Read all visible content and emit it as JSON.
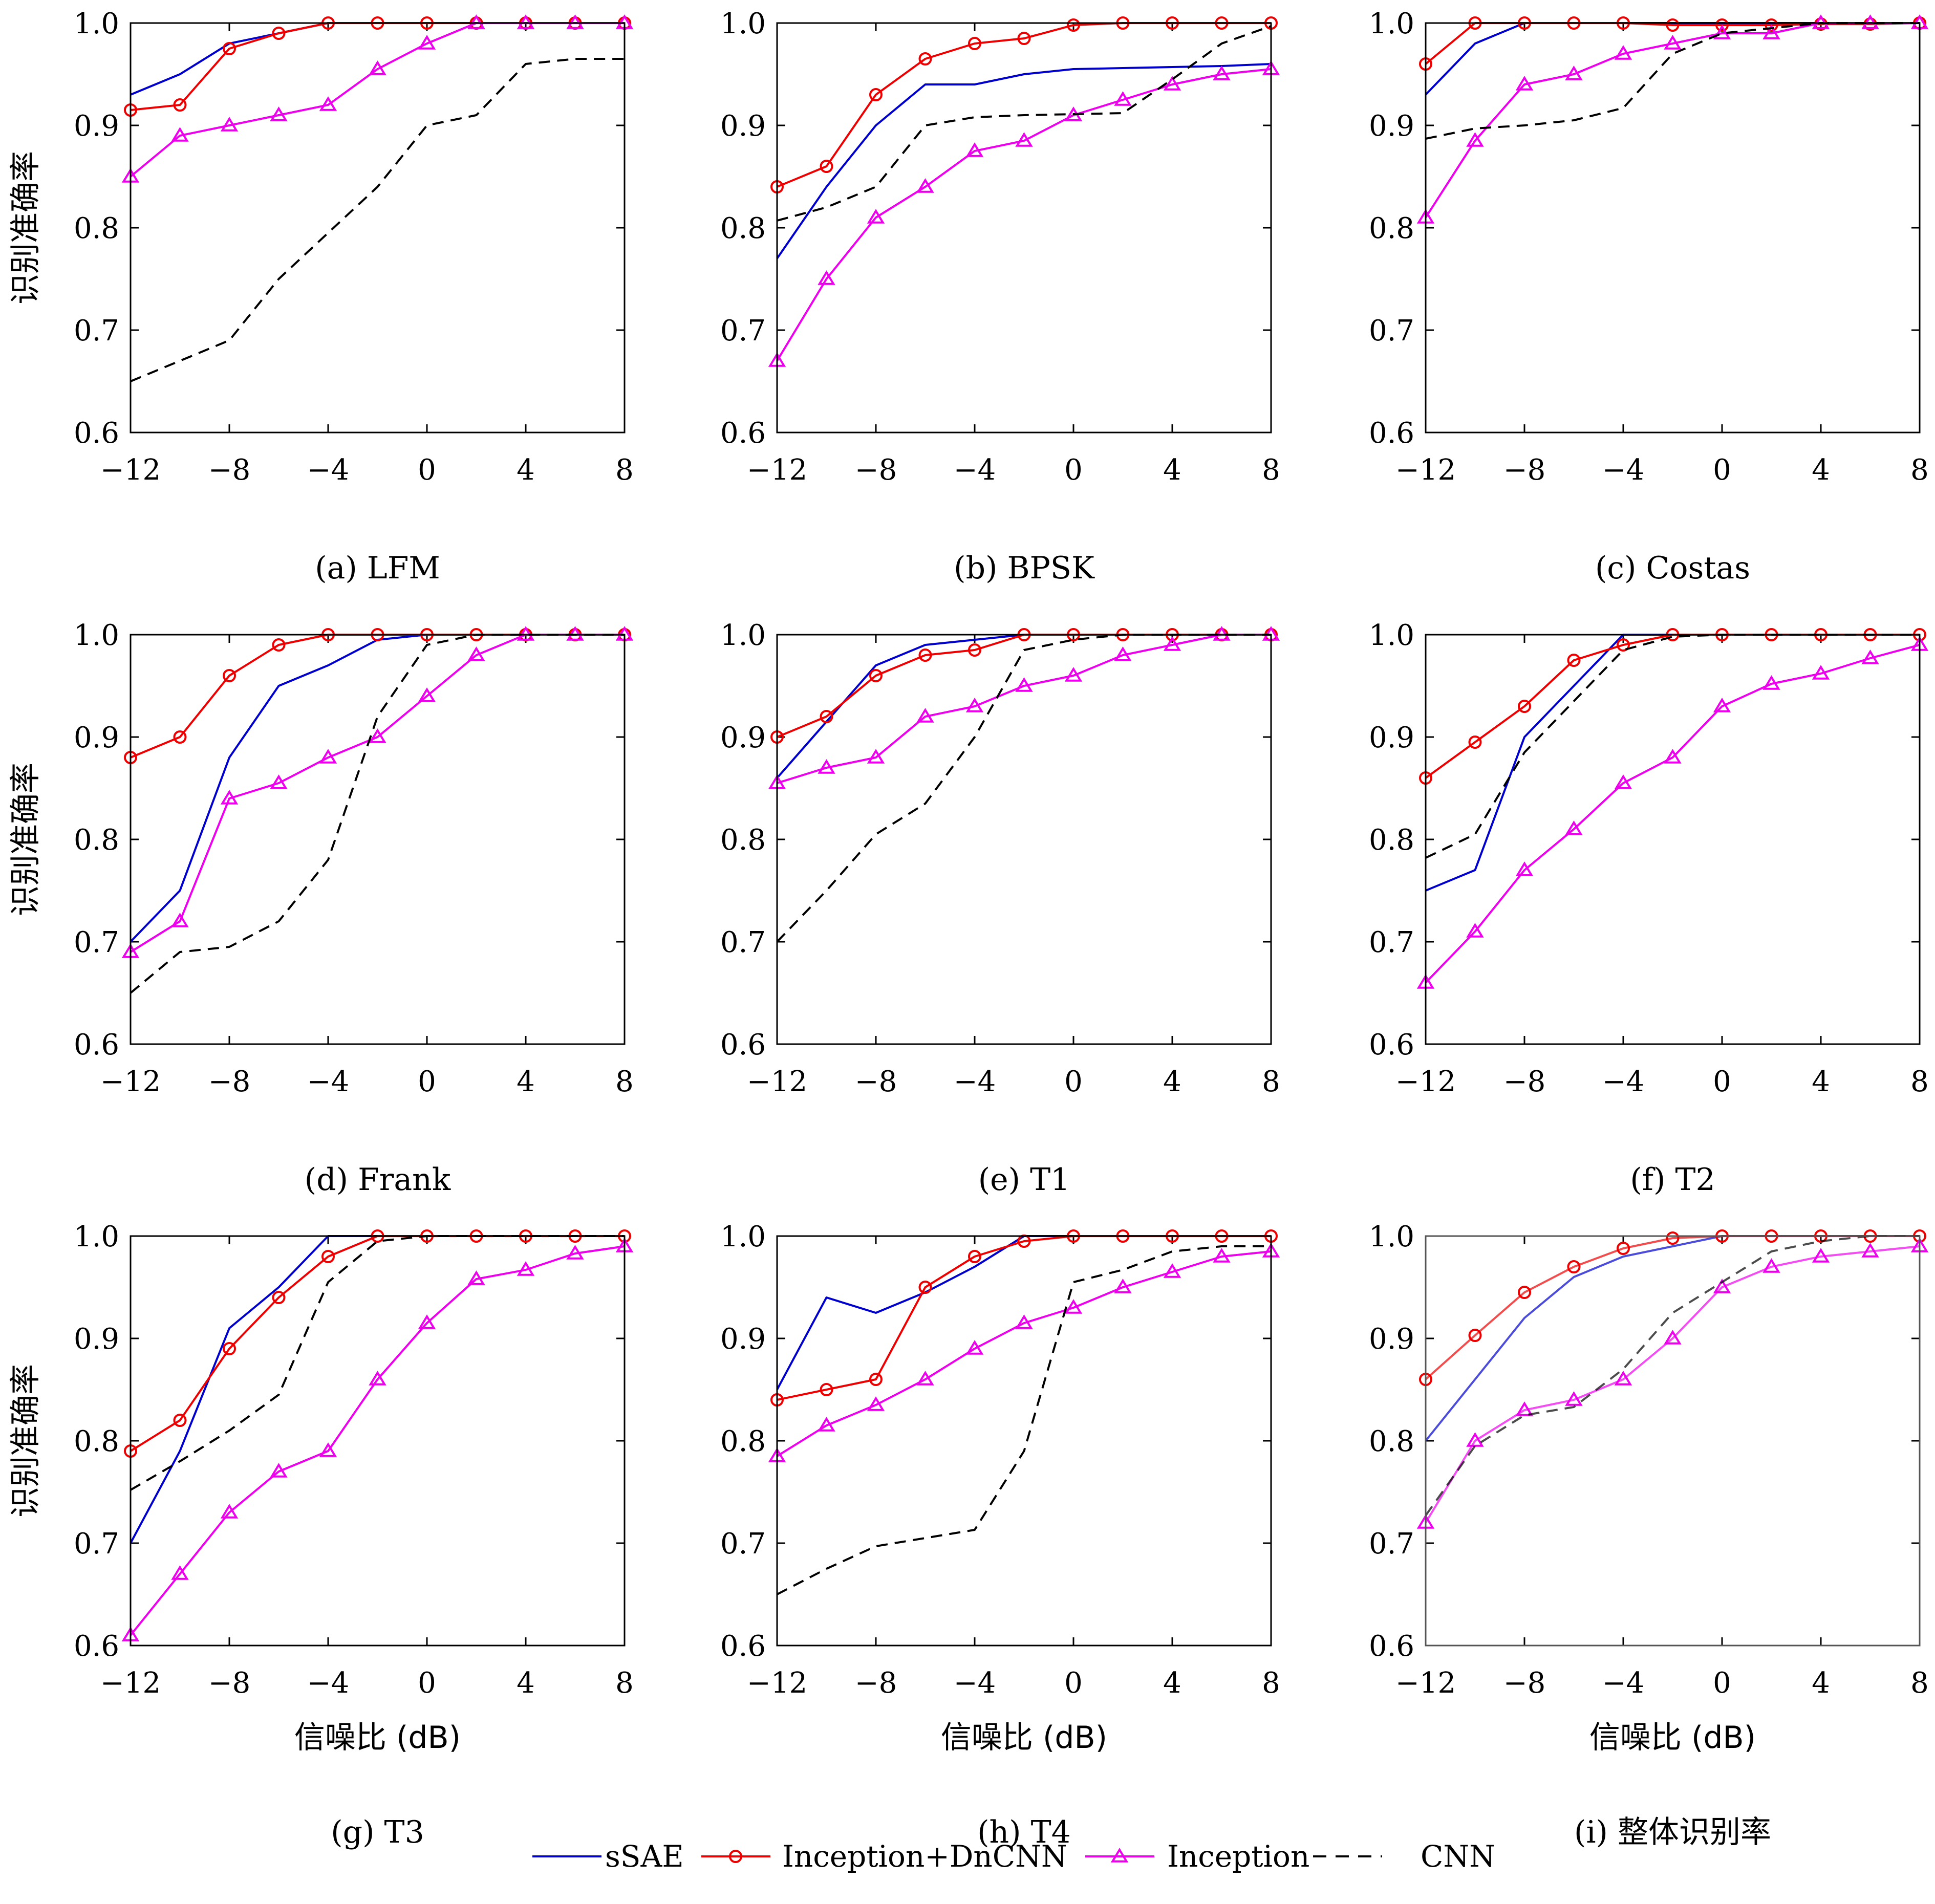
{
  "chart_data": [
    {
      "type": "line",
      "caption": "(a) LFM",
      "ylabel": "识别准确率",
      "xlabel": "",
      "xlim": [
        -12,
        8
      ],
      "ylim": [
        0.6,
        1.0
      ],
      "xticks": [
        "−12",
        "−8",
        "−4",
        "0",
        "4",
        "8"
      ],
      "yticks": [
        "0.6",
        "0.7",
        "0.8",
        "0.9",
        "1.0"
      ],
      "x": [
        -12,
        -10,
        -8,
        -6,
        -4,
        -2,
        0,
        2,
        4,
        6,
        8
      ],
      "series": [
        {
          "key": "sSAE",
          "values": [
            0.93,
            0.95,
            0.98,
            0.99,
            1.0,
            1.0,
            1.0,
            1.0,
            1.0,
            1.0,
            1.0
          ]
        },
        {
          "key": "Inception+DnCNN",
          "values": [
            0.915,
            0.92,
            0.975,
            0.99,
            1.0,
            1.0,
            1.0,
            1.0,
            1.0,
            1.0,
            1.0
          ]
        },
        {
          "key": "Inception",
          "values": [
            0.85,
            0.89,
            0.9,
            0.91,
            0.92,
            0.955,
            0.98,
            1.0,
            1.0,
            1.0,
            1.0
          ]
        },
        {
          "key": "CNN",
          "values": [
            0.65,
            0.67,
            0.69,
            0.75,
            0.795,
            0.84,
            0.9,
            0.91,
            0.96,
            0.965,
            0.965
          ]
        }
      ]
    },
    {
      "type": "line",
      "caption": "(b) BPSK",
      "ylabel": "",
      "xlabel": "",
      "xlim": [
        -12,
        8
      ],
      "ylim": [
        0.6,
        1.0
      ],
      "xticks": [
        "−12",
        "−8",
        "−4",
        "0",
        "4",
        "8"
      ],
      "yticks": [
        "0.6",
        "0.7",
        "0.8",
        "0.9",
        "1.0"
      ],
      "x": [
        -12,
        -10,
        -8,
        -6,
        -4,
        -2,
        0,
        2,
        4,
        6,
        8
      ],
      "series": [
        {
          "key": "sSAE",
          "values": [
            0.77,
            0.84,
            0.9,
            0.94,
            0.94,
            0.95,
            0.955,
            0.956,
            0.957,
            0.958,
            0.96
          ]
        },
        {
          "key": "Inception+DnCNN",
          "values": [
            0.84,
            0.86,
            0.93,
            0.965,
            0.98,
            0.985,
            0.998,
            1.0,
            1.0,
            1.0,
            1.0
          ]
        },
        {
          "key": "Inception",
          "values": [
            0.67,
            0.75,
            0.81,
            0.84,
            0.875,
            0.885,
            0.91,
            0.925,
            0.94,
            0.95,
            0.955
          ]
        },
        {
          "key": "CNN",
          "values": [
            0.807,
            0.82,
            0.84,
            0.9,
            0.908,
            0.91,
            0.911,
            0.912,
            0.945,
            0.98,
            0.997
          ]
        }
      ]
    },
    {
      "type": "line",
      "caption": "(c) Costas",
      "ylabel": "",
      "xlabel": "",
      "xlim": [
        -12,
        8
      ],
      "ylim": [
        0.6,
        1.0
      ],
      "xticks": [
        "−12",
        "−8",
        "−4",
        "0",
        "4",
        "8"
      ],
      "yticks": [
        "0.6",
        "0.7",
        "0.8",
        "0.9",
        "1.0"
      ],
      "x": [
        -12,
        -10,
        -8,
        -6,
        -4,
        -2,
        0,
        2,
        4,
        6,
        8
      ],
      "series": [
        {
          "key": "sSAE",
          "values": [
            0.93,
            0.98,
            1.0,
            1.0,
            1.0,
            1.0,
            1.0,
            1.0,
            1.0,
            1.0,
            1.0
          ]
        },
        {
          "key": "Inception+DnCNN",
          "values": [
            0.96,
            1.0,
            1.0,
            1.0,
            1.0,
            0.998,
            0.998,
            0.998,
            0.999,
            0.999,
            1.0
          ]
        },
        {
          "key": "Inception",
          "values": [
            0.81,
            0.885,
            0.94,
            0.95,
            0.97,
            0.98,
            0.99,
            0.99,
            1.0,
            1.0,
            1.0
          ]
        },
        {
          "key": "CNN",
          "values": [
            0.887,
            0.897,
            0.9,
            0.905,
            0.917,
            0.97,
            0.99,
            0.995,
            1.0,
            1.0,
            1.0
          ]
        }
      ]
    },
    {
      "type": "line",
      "caption": "(d) Frank",
      "ylabel": "识别准确率",
      "xlabel": "",
      "xlim": [
        -12,
        8
      ],
      "ylim": [
        0.6,
        1.0
      ],
      "xticks": [
        "−12",
        "−8",
        "−4",
        "0",
        "4",
        "8"
      ],
      "yticks": [
        "0.6",
        "0.7",
        "0.8",
        "0.9",
        "1.0"
      ],
      "x": [
        -12,
        -10,
        -8,
        -6,
        -4,
        -2,
        0,
        2,
        4,
        6,
        8
      ],
      "series": [
        {
          "key": "sSAE",
          "values": [
            0.7,
            0.75,
            0.88,
            0.95,
            0.97,
            0.995,
            1.0,
            1.0,
            1.0,
            1.0,
            1.0
          ]
        },
        {
          "key": "Inception+DnCNN",
          "values": [
            0.88,
            0.9,
            0.96,
            0.99,
            1.0,
            1.0,
            1.0,
            1.0,
            1.0,
            1.0,
            1.0
          ]
        },
        {
          "key": "Inception",
          "values": [
            0.69,
            0.72,
            0.84,
            0.855,
            0.88,
            0.9,
            0.94,
            0.98,
            1.0,
            1.0,
            1.0
          ]
        },
        {
          "key": "CNN",
          "values": [
            0.65,
            0.69,
            0.695,
            0.72,
            0.78,
            0.92,
            0.99,
            1.0,
            1.0,
            1.0,
            1.0
          ]
        }
      ]
    },
    {
      "type": "line",
      "caption": "(e) T1",
      "ylabel": "",
      "xlabel": "",
      "xlim": [
        -12,
        8
      ],
      "ylim": [
        0.6,
        1.0
      ],
      "xticks": [
        "−12",
        "−8",
        "−4",
        "0",
        "4",
        "8"
      ],
      "yticks": [
        "0.6",
        "0.7",
        "0.8",
        "0.9",
        "1.0"
      ],
      "x": [
        -12,
        -10,
        -8,
        -6,
        -4,
        -2,
        0,
        2,
        4,
        6,
        8
      ],
      "series": [
        {
          "key": "sSAE",
          "values": [
            0.86,
            0.915,
            0.97,
            0.99,
            0.995,
            1.0,
            1.0,
            1.0,
            1.0,
            1.0,
            1.0
          ]
        },
        {
          "key": "Inception+DnCNN",
          "values": [
            0.9,
            0.92,
            0.96,
            0.98,
            0.985,
            1.0,
            1.0,
            1.0,
            1.0,
            1.0,
            1.0
          ]
        },
        {
          "key": "Inception",
          "values": [
            0.855,
            0.87,
            0.88,
            0.92,
            0.93,
            0.95,
            0.96,
            0.98,
            0.99,
            1.0,
            1.0
          ]
        },
        {
          "key": "CNN",
          "values": [
            0.7,
            0.75,
            0.805,
            0.835,
            0.9,
            0.985,
            0.995,
            1.0,
            1.0,
            1.0,
            1.0
          ]
        }
      ]
    },
    {
      "type": "line",
      "caption": "(f) T2",
      "ylabel": "",
      "xlabel": "",
      "xlim": [
        -12,
        8
      ],
      "ylim": [
        0.6,
        1.0
      ],
      "xticks": [
        "−12",
        "−8",
        "−4",
        "0",
        "4",
        "8"
      ],
      "yticks": [
        "0.6",
        "0.7",
        "0.8",
        "0.9",
        "1.0"
      ],
      "x": [
        -12,
        -10,
        -8,
        -6,
        -4,
        -2,
        0,
        2,
        4,
        6,
        8
      ],
      "series": [
        {
          "key": "sSAE",
          "values": [
            0.75,
            0.77,
            0.9,
            0.95,
            1.0,
            1.0,
            1.0,
            1.0,
            1.0,
            1.0,
            1.0
          ]
        },
        {
          "key": "Inception+DnCNN",
          "values": [
            0.86,
            0.895,
            0.93,
            0.975,
            0.99,
            1.0,
            1.0,
            1.0,
            1.0,
            1.0,
            1.0
          ]
        },
        {
          "key": "Inception",
          "values": [
            0.66,
            0.71,
            0.77,
            0.81,
            0.855,
            0.88,
            0.93,
            0.952,
            0.962,
            0.977,
            0.99
          ]
        },
        {
          "key": "CNN",
          "values": [
            0.782,
            0.805,
            0.885,
            0.935,
            0.985,
            0.998,
            1.0,
            1.0,
            1.0,
            1.0,
            1.0
          ]
        }
      ]
    },
    {
      "type": "line",
      "caption": "(g) T3",
      "ylabel": "识别准确率",
      "xlabel": "信噪比 (dB)",
      "xlim": [
        -12,
        8
      ],
      "ylim": [
        0.6,
        1.0
      ],
      "xticks": [
        "−12",
        "−8",
        "−4",
        "0",
        "4",
        "8"
      ],
      "yticks": [
        "0.6",
        "0.7",
        "0.8",
        "0.9",
        "1.0"
      ],
      "x": [
        -12,
        -10,
        -8,
        -6,
        -4,
        -2,
        0,
        2,
        4,
        6,
        8
      ],
      "series": [
        {
          "key": "sSAE",
          "values": [
            0.7,
            0.79,
            0.91,
            0.95,
            1.0,
            1.0,
            1.0,
            1.0,
            1.0,
            1.0,
            1.0
          ]
        },
        {
          "key": "Inception+DnCNN",
          "values": [
            0.79,
            0.82,
            0.89,
            0.94,
            0.98,
            1.0,
            1.0,
            1.0,
            1.0,
            1.0,
            1.0
          ]
        },
        {
          "key": "Inception",
          "values": [
            0.61,
            0.67,
            0.73,
            0.77,
            0.79,
            0.86,
            0.915,
            0.958,
            0.967,
            0.983,
            0.99
          ]
        },
        {
          "key": "CNN",
          "values": [
            0.752,
            0.78,
            0.81,
            0.845,
            0.955,
            0.995,
            1.0,
            1.0,
            1.0,
            1.0,
            1.0
          ]
        }
      ]
    },
    {
      "type": "line",
      "caption": "(h) T4",
      "ylabel": "",
      "xlabel": "信噪比 (dB)",
      "xlim": [
        -12,
        8
      ],
      "ylim": [
        0.6,
        1.0
      ],
      "xticks": [
        "−12",
        "−8",
        "−4",
        "0",
        "4",
        "8"
      ],
      "yticks": [
        "0.6",
        "0.7",
        "0.8",
        "0.9",
        "1.0"
      ],
      "x": [
        -12,
        -10,
        -8,
        -6,
        -4,
        -2,
        0,
        2,
        4,
        6,
        8
      ],
      "series": [
        {
          "key": "sSAE",
          "values": [
            0.85,
            0.94,
            0.925,
            0.945,
            0.97,
            1.0,
            1.0,
            1.0,
            1.0,
            1.0,
            1.0
          ]
        },
        {
          "key": "Inception+DnCNN",
          "values": [
            0.84,
            0.85,
            0.86,
            0.95,
            0.98,
            0.995,
            1.0,
            1.0,
            1.0,
            1.0,
            1.0
          ]
        },
        {
          "key": "Inception",
          "values": [
            0.785,
            0.815,
            0.835,
            0.86,
            0.89,
            0.915,
            0.93,
            0.95,
            0.965,
            0.98,
            0.985
          ]
        },
        {
          "key": "CNN",
          "values": [
            0.65,
            0.675,
            0.697,
            0.705,
            0.713,
            0.79,
            0.955,
            0.967,
            0.985,
            0.99,
            0.99
          ]
        }
      ]
    },
    {
      "type": "line",
      "caption": "(i) 整体识别率",
      "ylabel": "",
      "xlabel": "信噪比 (dB)",
      "xlim": [
        -12,
        8
      ],
      "ylim": [
        0.6,
        1.0
      ],
      "xticks": [
        "−12",
        "−8",
        "−4",
        "0",
        "4",
        "8"
      ],
      "yticks": [
        "0.6",
        "0.7",
        "0.8",
        "0.9",
        "1.0"
      ],
      "x": [
        -12,
        -10,
        -8,
        -6,
        -4,
        -2,
        0,
        2,
        4,
        6,
        8
      ],
      "series": [
        {
          "key": "sSAE",
          "values": [
            0.8,
            0.86,
            0.92,
            0.96,
            0.98,
            0.99,
            1.0,
            1.0,
            1.0,
            1.0,
            1.0
          ]
        },
        {
          "key": "Inception+DnCNN",
          "values": [
            0.86,
            0.903,
            0.945,
            0.97,
            0.988,
            0.998,
            1.0,
            1.0,
            1.0,
            1.0,
            1.0
          ]
        },
        {
          "key": "Inception",
          "values": [
            0.72,
            0.8,
            0.83,
            0.84,
            0.86,
            0.9,
            0.95,
            0.97,
            0.98,
            0.985,
            0.99
          ]
        },
        {
          "key": "CNN",
          "values": [
            0.727,
            0.795,
            0.825,
            0.833,
            0.87,
            0.925,
            0.955,
            0.985,
            0.995,
            1.0,
            1.0
          ]
        }
      ]
    }
  ],
  "series_styles": {
    "sSAE": {
      "color": "#0000cc",
      "dash": "solid",
      "marker": "none"
    },
    "Inception+DnCNN": {
      "color": "#ee0000",
      "dash": "solid",
      "marker": "circle"
    },
    "Inception": {
      "color": "#ee00ee",
      "dash": "solid",
      "marker": "triangle"
    },
    "CNN": {
      "color": "#000000",
      "dash": "dashed",
      "marker": "none"
    }
  },
  "legend": {
    "placement": "bottom-center",
    "entries": [
      {
        "key": "sSAE",
        "label": "sSAE"
      },
      {
        "key": "Inception+DnCNN",
        "label": "Inception+DnCNN"
      },
      {
        "key": "Inception",
        "label": "Inception"
      },
      {
        "key": "CNN",
        "label": "CNN"
      }
    ]
  }
}
